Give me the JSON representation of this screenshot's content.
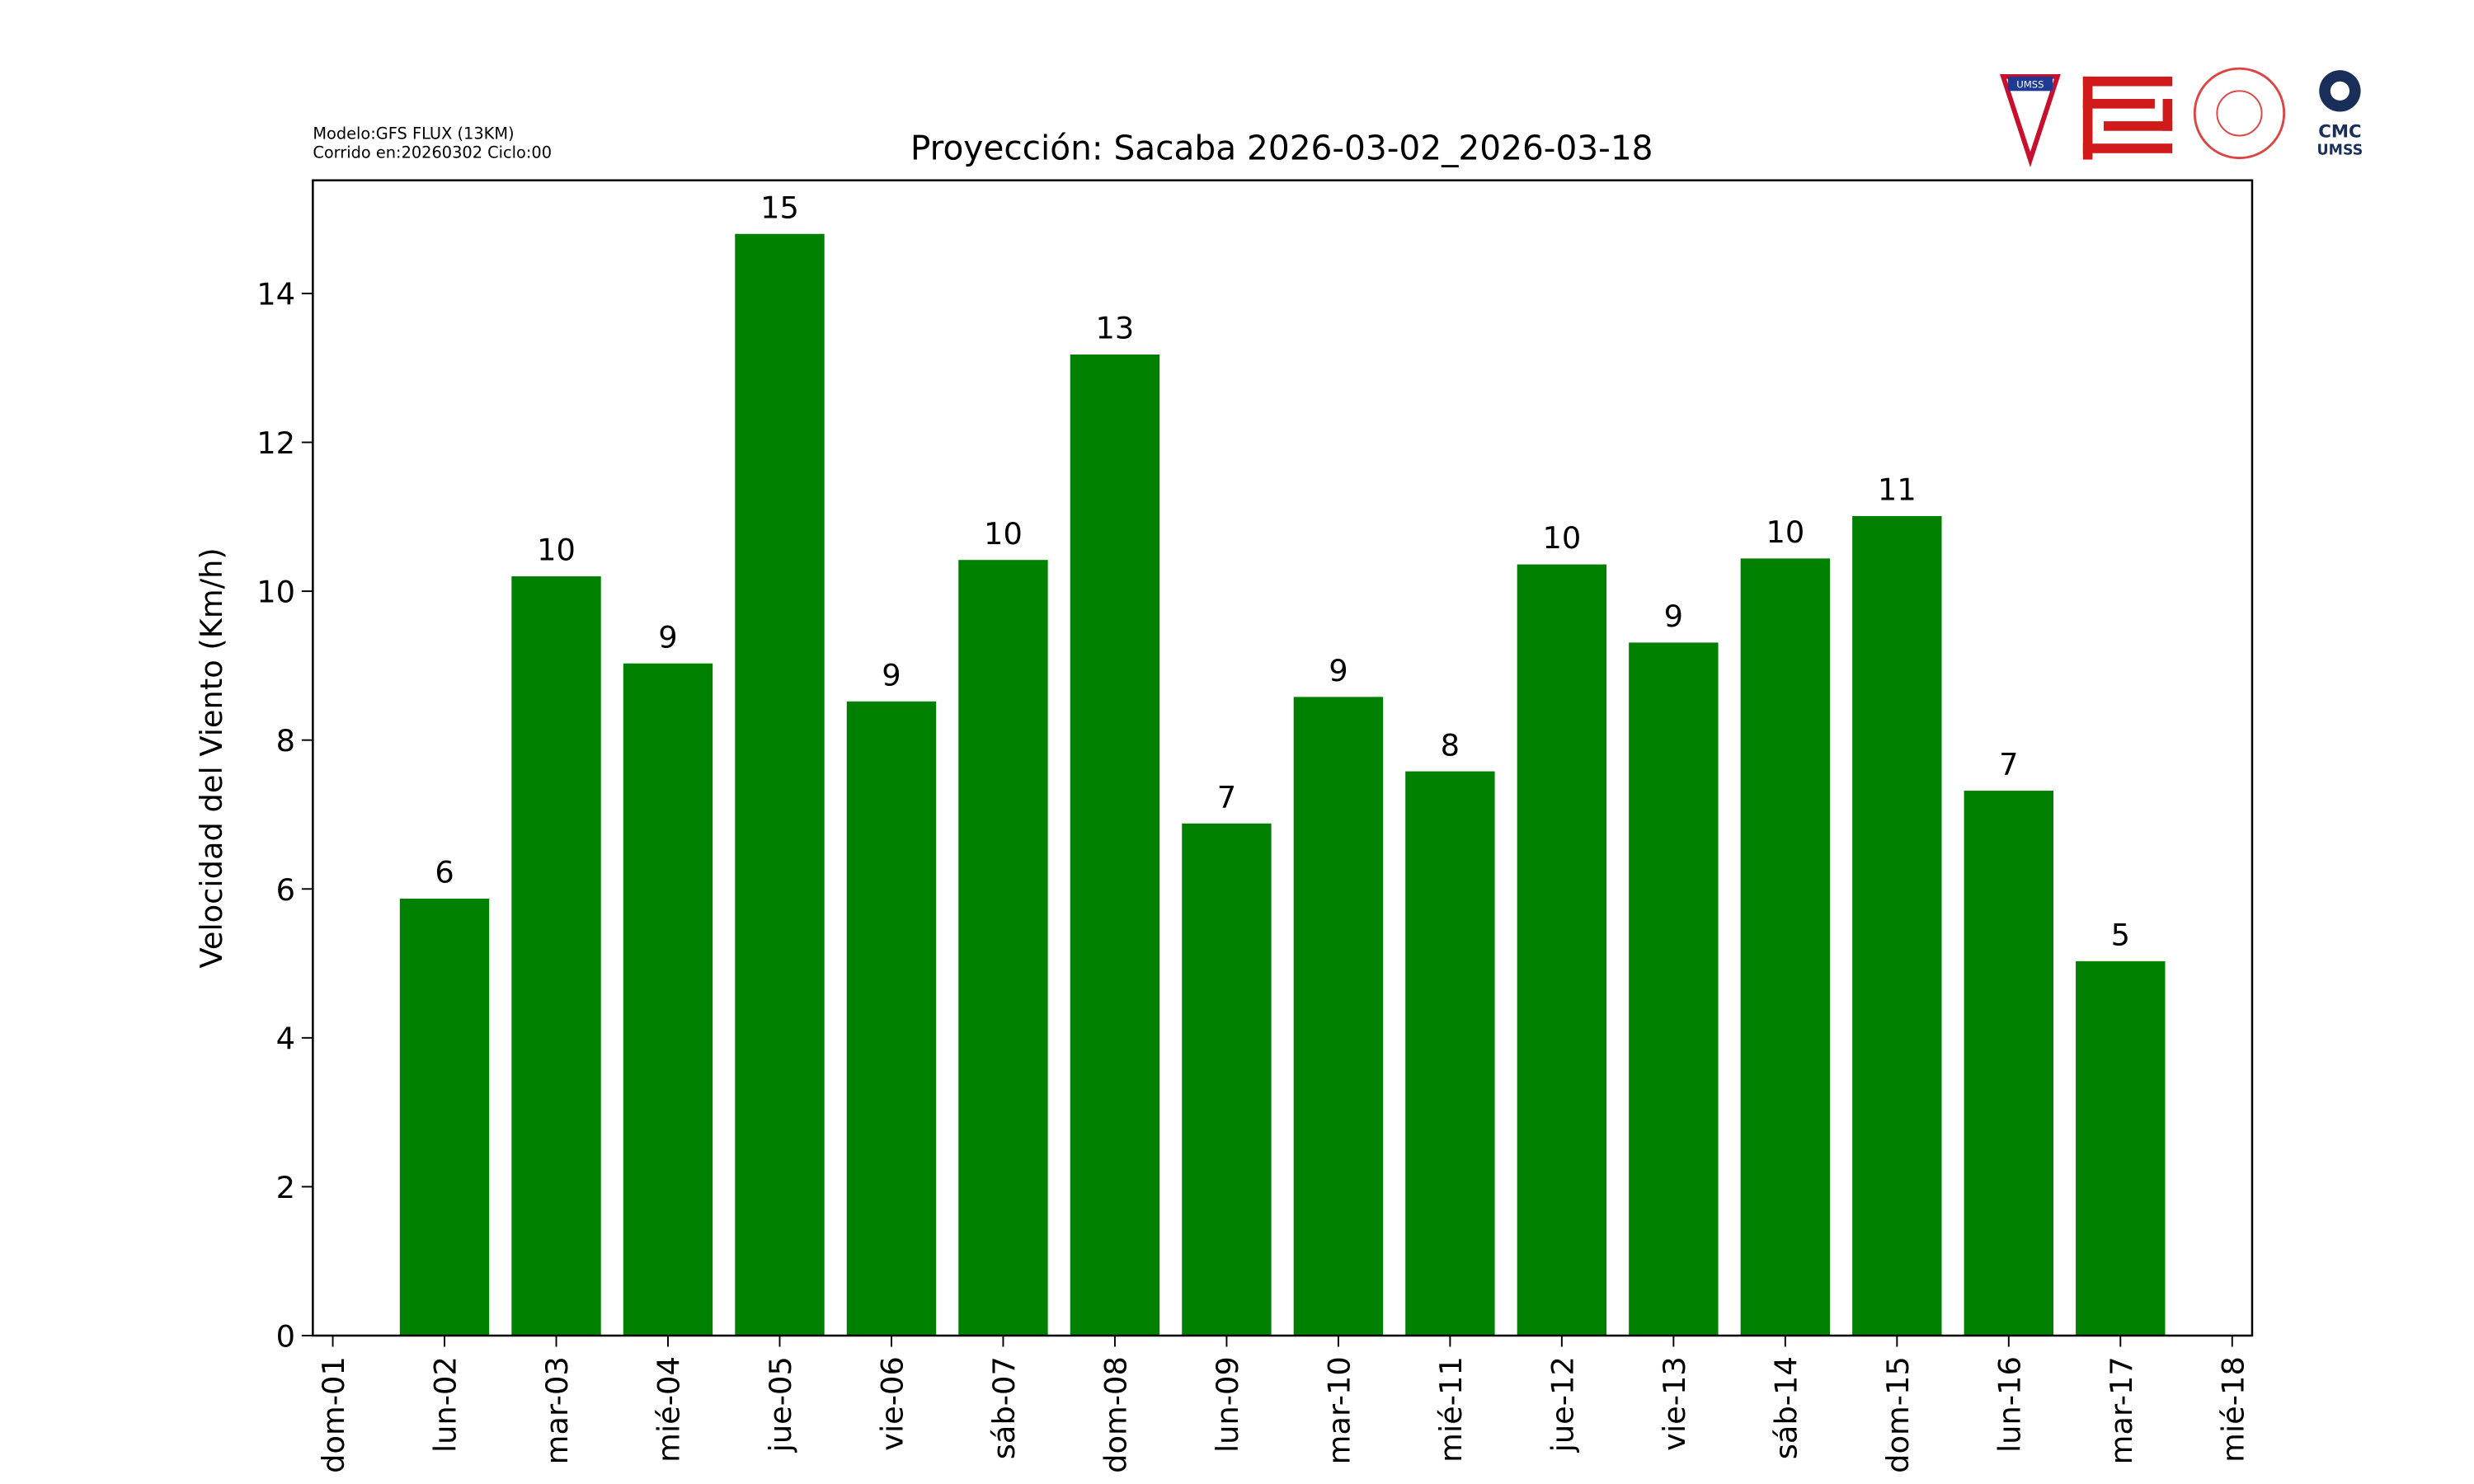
{
  "header": {
    "model": "Modelo:GFS FLUX (13KM)",
    "run": "Corrido en:20260302 Ciclo:00",
    "logo_shield": "UMSS",
    "logo_cmc": "CMC",
    "logo_cmc_sub": "UMSS"
  },
  "chart_data": {
    "type": "bar",
    "title": "Proyección: Sacaba  2026-03-02_2026-03-18",
    "y_label": "Velocidad del Viento (Km/h)",
    "categories": [
      "dom-01",
      "lun-02",
      "mar-03",
      "mié-04",
      "jue-05",
      "vie-06",
      "sáb-07",
      "dom-08",
      "lun-09",
      "mar-10",
      "mié-11",
      "jue-12",
      "vie-13",
      "sáb-14",
      "dom-15",
      "lun-16",
      "mar-17",
      "mié-18"
    ],
    "values": [
      null,
      5.87,
      10.2,
      9.03,
      14.8,
      8.52,
      10.42,
      13.18,
      6.88,
      8.58,
      7.58,
      10.36,
      9.31,
      10.44,
      11.01,
      7.32,
      5.03,
      null
    ],
    "value_labels": [
      null,
      "6",
      "10",
      "9",
      "15",
      "9",
      "10",
      "13",
      "7",
      "9",
      "8",
      "10",
      "9",
      "10",
      "11",
      "7",
      "5",
      null
    ],
    "color": "#008000",
    "ylim": [
      0,
      15.52
    ],
    "yticks": [
      0,
      2,
      4,
      6,
      8,
      10,
      12,
      14
    ],
    "grid": false
  }
}
